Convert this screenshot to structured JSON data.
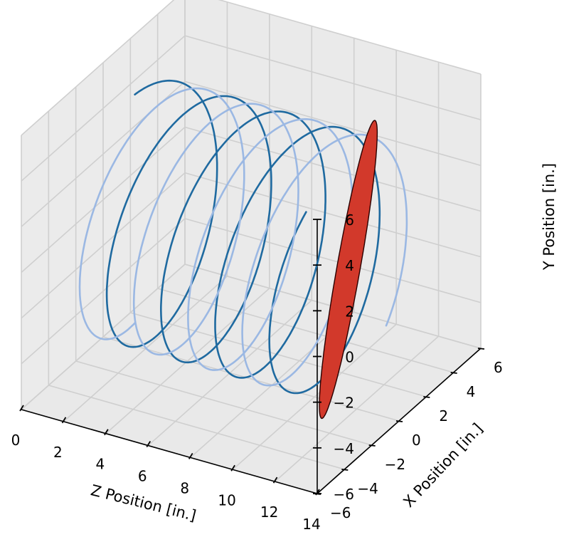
{
  "chart_data": {
    "type": "line3d",
    "title": "",
    "axes": {
      "z": {
        "label": "Z Position [in.]",
        "range": [
          0,
          14
        ],
        "ticks": [
          0,
          2,
          4,
          6,
          8,
          10,
          12,
          14
        ]
      },
      "x": {
        "label": "X Position [in.]",
        "range": [
          -6,
          6
        ],
        "ticks": [
          -6,
          -4,
          -2,
          0,
          2,
          4,
          6
        ]
      },
      "y": {
        "label": "Y Position [in.]",
        "range": [
          -6,
          6
        ],
        "ticks": [
          -6,
          -4,
          -2,
          0,
          2,
          4,
          6
        ]
      }
    },
    "grid": true,
    "pane_color": "#e9e9e9",
    "series": [
      {
        "kind": "helix",
        "color": "#1f6aa0",
        "radius": 5,
        "z_start": 1.5,
        "z_end": 11.5,
        "turns": 3.9,
        "phase_deg": 0
      },
      {
        "kind": "helix",
        "color": "#9bb8e3",
        "radius": 5,
        "z_start": 1.5,
        "z_end": 11.5,
        "turns": 3.9,
        "phase_deg": 180
      },
      {
        "kind": "ellipse-disk",
        "color": "#d2392b",
        "edge_color": "#2a0000",
        "z_center": 11.6,
        "x_center": 0,
        "y_center": 0,
        "semi_axis_long": 5.5,
        "semi_axis_short": 0.35
      }
    ]
  }
}
